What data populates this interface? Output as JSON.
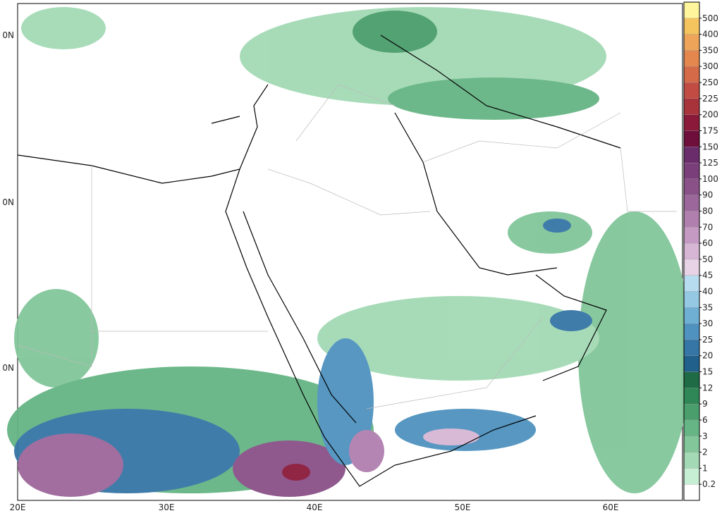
{
  "map": {
    "x_labels": [
      "20E",
      "30E",
      "40E",
      "50E",
      "60E"
    ],
    "y_labels": [
      "0N",
      "0N",
      "0N"
    ],
    "legend": {
      "labels": [
        "0.2",
        "1",
        "2",
        "3",
        "6",
        "9",
        "12",
        "15",
        "20",
        "25",
        "30",
        "35",
        "40",
        "45",
        "50",
        "60",
        "70",
        "80",
        "90",
        "100",
        "125",
        "150",
        "175",
        "200",
        "225",
        "250",
        "300",
        "350",
        "400",
        "500"
      ],
      "colors": [
        "#ffffff",
        "#c7efd4",
        "#a3dab5",
        "#82c69a",
        "#66b584",
        "#4a9e6c",
        "#2f8656",
        "#1f6b45",
        "#22608c",
        "#3676a6",
        "#4f92bf",
        "#6fafd3",
        "#94c8e3",
        "#b7dcf0",
        "#e8d2e6",
        "#d6b6d4",
        "#c49ac2",
        "#b07fae",
        "#9c679a",
        "#8a5189",
        "#7a3f7a",
        "#6b2c6b",
        "#6d0f3a",
        "#8b1a3a",
        "#a8333b",
        "#c24c43",
        "#d46a48",
        "#e3874f",
        "#eea55a",
        "#f6c45f",
        "#fff59d"
      ]
    }
  }
}
